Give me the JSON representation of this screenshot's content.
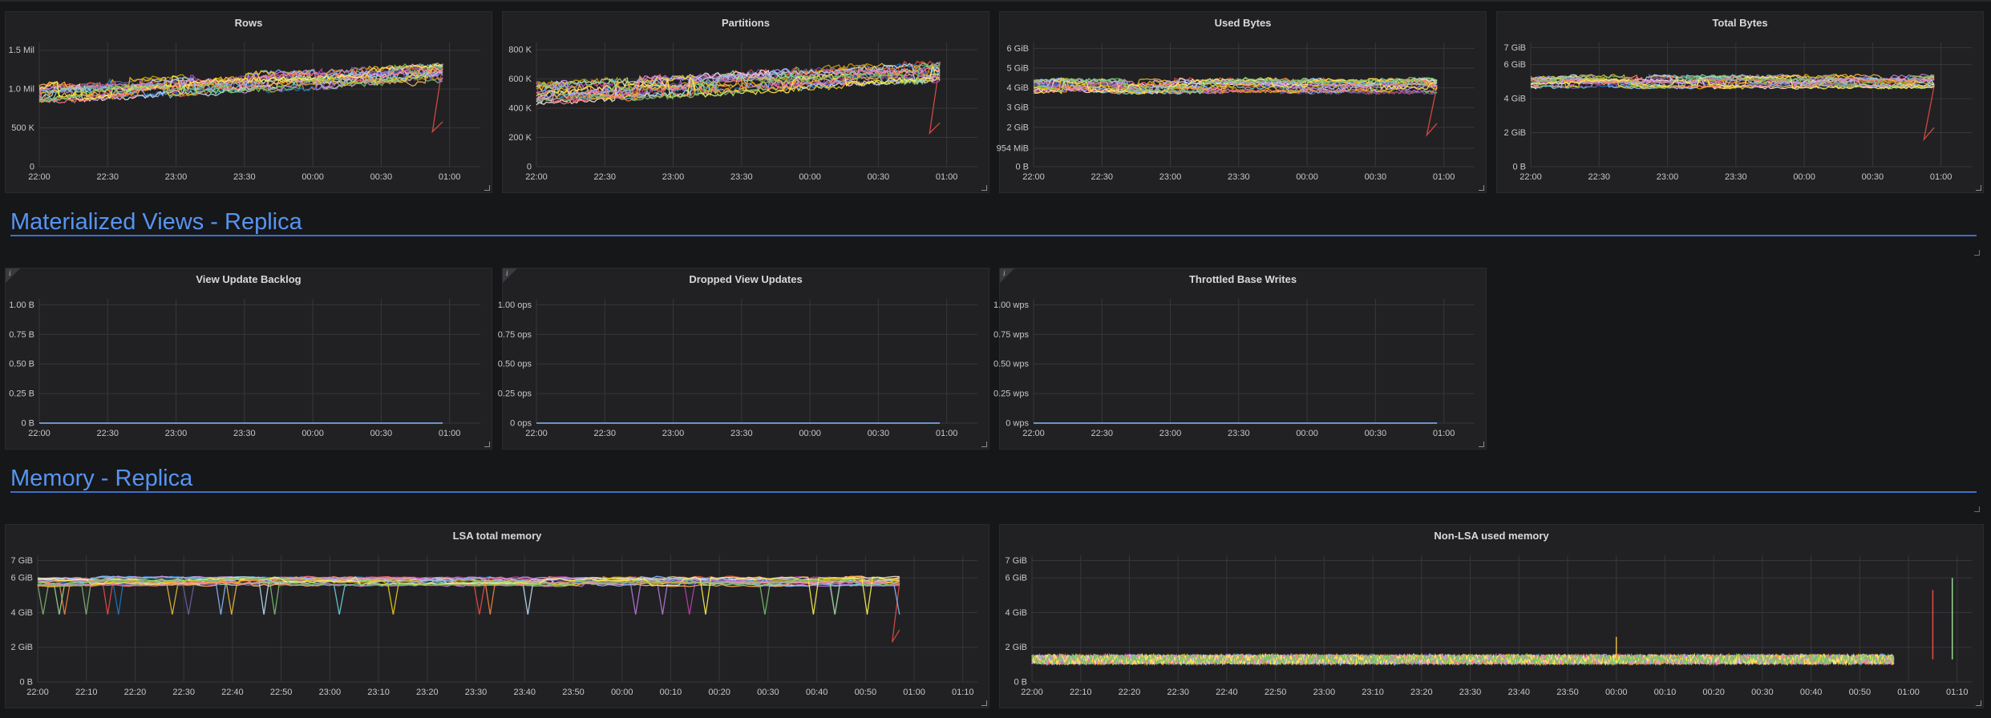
{
  "rows": [
    {
      "title": "Materialized Views - Replica"
    },
    {
      "title": "Memory - Replica"
    }
  ],
  "palette": [
    "#7eb26d",
    "#eab839",
    "#6ed0e0",
    "#ef843c",
    "#e24d42",
    "#1f78c1",
    "#ba43a9",
    "#705da0",
    "#badff4",
    "#f9e2d2",
    "#cca300",
    "#b877d9",
    "#ffb357",
    "#8ab8ff",
    "#f2cc0c",
    "#96d98d",
    "#ff7383",
    "#ca95e5",
    "#ffee52",
    "#73bf69"
  ],
  "panels": [
    {
      "title": "Rows",
      "info": false,
      "yticks": [
        "0",
        "500 K",
        "1.0 Mil",
        "1.5 Mil"
      ],
      "yvals": [
        0,
        0.5,
        1.0,
        1.5
      ],
      "ymax": 1.6,
      "xticks": [
        "22:00",
        "22:30",
        "23:00",
        "23:30",
        "00:00",
        "00:30",
        "01:00"
      ],
      "xmax": 6.45,
      "chart_data": {
        "type": "line",
        "ylabel": "",
        "series_count": 20,
        "x_end": "00:57",
        "base": 0.95,
        "trend": 0.25,
        "spread": 0.12,
        "drop": [
          0.45,
          0.58
        ]
      }
    },
    {
      "title": "Partitions",
      "info": false,
      "yticks": [
        "0",
        "200 K",
        "400 K",
        "600 K",
        "800 K"
      ],
      "yvals": [
        0,
        200,
        400,
        600,
        800
      ],
      "ymax": 850,
      "xticks": [
        "22:00",
        "22:30",
        "23:00",
        "23:30",
        "00:00",
        "00:30",
        "01:00"
      ],
      "xmax": 6.45,
      "chart_data": {
        "type": "line",
        "series_count": 20,
        "x_end": "00:57",
        "base": 500,
        "trend": 150,
        "spread": 70,
        "drop": [
          230,
          300
        ]
      }
    },
    {
      "title": "Used Bytes",
      "info": false,
      "yticks": [
        "0 B",
        "954 MiB",
        "2 GiB",
        "3 GiB",
        "4 GiB",
        "5 GiB",
        "6 GiB"
      ],
      "yvals": [
        0,
        0.93,
        2,
        3,
        4,
        5,
        6
      ],
      "ymax": 6.3,
      "xticks": [
        "22:00",
        "22:30",
        "23:00",
        "23:30",
        "00:00",
        "00:30",
        "01:00"
      ],
      "xmax": 6.45,
      "chart_data": {
        "type": "line",
        "series_count": 20,
        "x_end": "00:57",
        "base": 4.1,
        "trend": 0,
        "spread": 0.35,
        "drop": [
          1.6,
          2.2
        ]
      }
    },
    {
      "title": "Total Bytes",
      "info": false,
      "yticks": [
        "0 B",
        "2 GiB",
        "4 GiB",
        "6 GiB",
        "7 GiB"
      ],
      "yvals": [
        0,
        2,
        4,
        6,
        7
      ],
      "ymax": 7.3,
      "xticks": [
        "22:00",
        "22:30",
        "23:00",
        "23:30",
        "00:00",
        "00:30",
        "01:00"
      ],
      "xmax": 6.45,
      "chart_data": {
        "type": "line",
        "series_count": 20,
        "x_end": "00:57",
        "base": 5.0,
        "trend": 0,
        "spread": 0.35,
        "drop": [
          1.6,
          2.3
        ]
      }
    },
    {
      "title": "View Update Backlog",
      "info": true,
      "yticks": [
        "0 B",
        "0.25 B",
        "0.50 B",
        "0.75 B",
        "1.00 B"
      ],
      "yvals": [
        0,
        0.25,
        0.5,
        0.75,
        1.0
      ],
      "ymax": 1.05,
      "xticks": [
        "22:00",
        "22:30",
        "23:00",
        "23:30",
        "00:00",
        "00:30",
        "01:00"
      ],
      "xmax": 6.45,
      "chart_data": {
        "type": "line",
        "series_count": 1,
        "x_end": "00:57",
        "flat": 0
      }
    },
    {
      "title": "Dropped View Updates",
      "info": true,
      "yticks": [
        "0 ops",
        "0.25 ops",
        "0.50 ops",
        "0.75 ops",
        "1.00 ops"
      ],
      "yvals": [
        0,
        0.25,
        0.5,
        0.75,
        1.0
      ],
      "ymax": 1.05,
      "xticks": [
        "22:00",
        "22:30",
        "23:00",
        "23:30",
        "00:00",
        "00:30",
        "01:00"
      ],
      "xmax": 6.45,
      "chart_data": {
        "type": "line",
        "series_count": 1,
        "x_end": "00:57",
        "flat": 0
      }
    },
    {
      "title": "Throttled Base Writes",
      "info": true,
      "yticks": [
        "0 wps",
        "0.25 wps",
        "0.50 wps",
        "0.75 wps",
        "1.00 wps"
      ],
      "yvals": [
        0,
        0.25,
        0.5,
        0.75,
        1.0
      ],
      "ymax": 1.05,
      "xticks": [
        "22:00",
        "22:30",
        "23:00",
        "23:30",
        "00:00",
        "00:30",
        "01:00"
      ],
      "xmax": 6.45,
      "chart_data": {
        "type": "line",
        "series_count": 1,
        "x_end": "00:57",
        "flat": 0
      }
    },
    {
      "title": "LSA total memory",
      "info": false,
      "yticks": [
        "0 B",
        "2 GiB",
        "4 GiB",
        "6 GiB",
        "7 GiB"
      ],
      "yvals": [
        0,
        2,
        4,
        6,
        7
      ],
      "ymax": 7.3,
      "xticks": [
        "22:00",
        "22:10",
        "22:20",
        "22:30",
        "22:40",
        "22:50",
        "23:00",
        "23:10",
        "23:20",
        "23:30",
        "23:40",
        "23:50",
        "00:00",
        "00:10",
        "00:20",
        "00:30",
        "00:40",
        "00:50",
        "01:00",
        "01:10"
      ],
      "xmax": 19.3,
      "chart_data": {
        "type": "line",
        "series_count": 20,
        "x_end": "00:57",
        "base": 5.8,
        "trend": 0,
        "spread": 0.25,
        "dips": true,
        "drop": [
          2.3,
          3.0
        ]
      }
    },
    {
      "title": "Non-LSA used memory",
      "info": false,
      "yticks": [
        "0 B",
        "2 GiB",
        "4 GiB",
        "6 GiB",
        "7 GiB"
      ],
      "yvals": [
        0,
        2,
        4,
        6,
        7
      ],
      "ymax": 7.3,
      "xticks": [
        "22:00",
        "22:10",
        "22:20",
        "22:30",
        "22:40",
        "22:50",
        "23:00",
        "23:10",
        "23:20",
        "23:30",
        "23:40",
        "23:50",
        "00:00",
        "00:10",
        "00:20",
        "00:30",
        "00:40",
        "00:50",
        "01:00",
        "01:10"
      ],
      "xmax": 19.3,
      "chart_data": {
        "type": "line",
        "series_count": 20,
        "x_end": "00:57",
        "base": 1.3,
        "trend": 0,
        "spread": 0.35,
        "noisy": true,
        "spikes": [
          [
            12.0,
            2.6
          ],
          [
            18.5,
            5.3
          ],
          [
            18.9,
            6.0
          ]
        ]
      }
    }
  ]
}
